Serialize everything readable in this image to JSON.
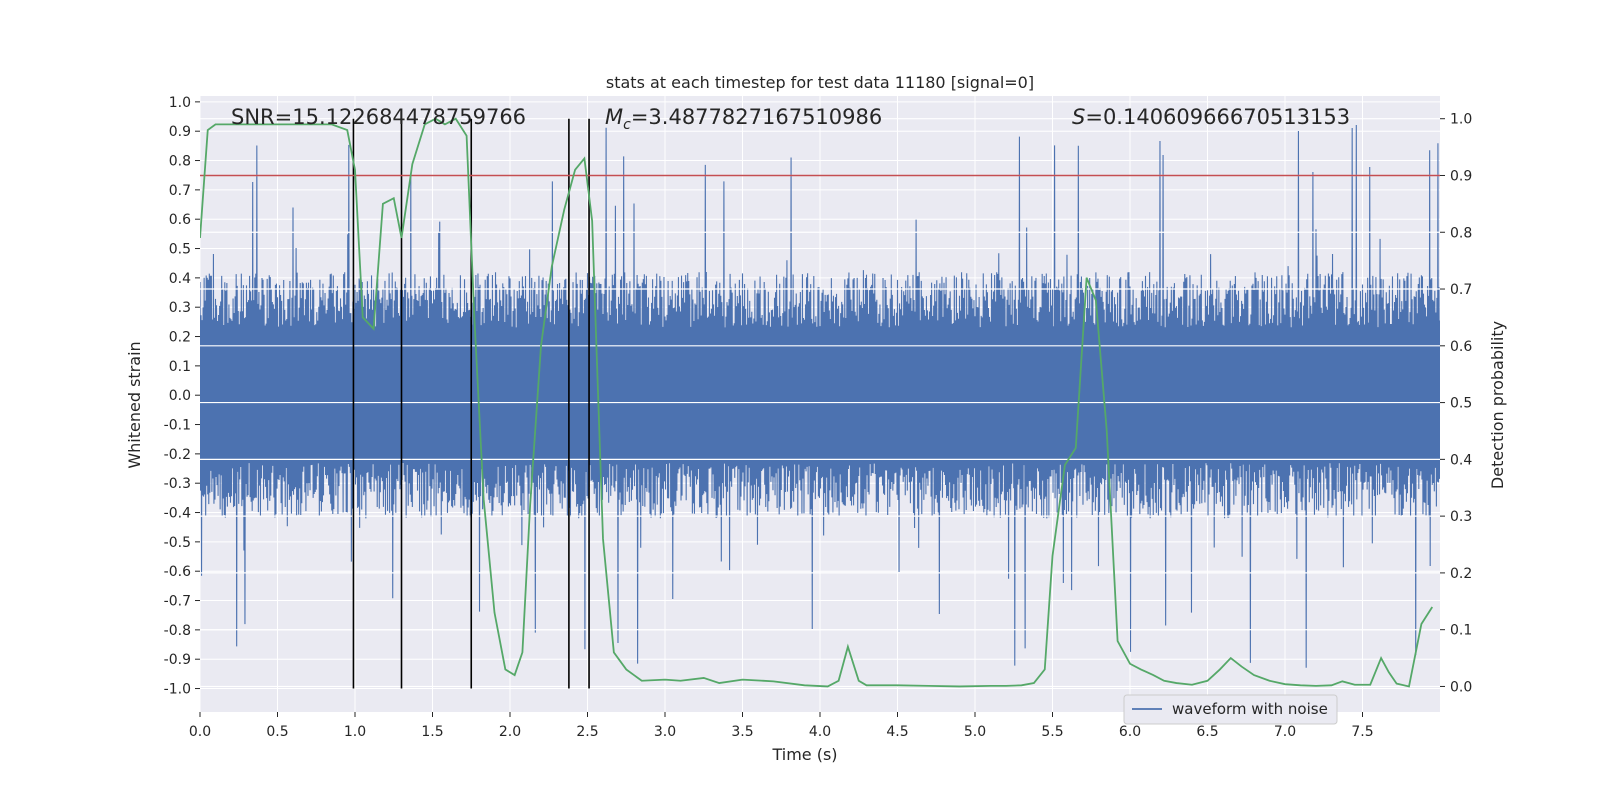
{
  "chart_data": {
    "type": "line",
    "title": "stats at each timestep for test data 11180 [signal=0]",
    "xlabel": "Time (s)",
    "ylabel_left": "Whitened strain",
    "ylabel_right": "Detection probability",
    "xlim": [
      0,
      8
    ],
    "ylim_left": [
      -1.08,
      1.02
    ],
    "ylim_right": [
      -0.045,
      1.04
    ],
    "x_ticks": [
      "0.0",
      "0.5",
      "1.0",
      "1.5",
      "2.0",
      "2.5",
      "3.0",
      "3.5",
      "4.0",
      "4.5",
      "5.0",
      "5.5",
      "6.0",
      "6.5",
      "7.0",
      "7.5"
    ],
    "y_ticks_left": [
      "-1.0",
      "-0.9",
      "-0.8",
      "-0.7",
      "-0.6",
      "-0.5",
      "-0.4",
      "-0.3",
      "-0.2",
      "-0.1",
      "0.0",
      "0.1",
      "0.2",
      "0.3",
      "0.4",
      "0.5",
      "0.6",
      "0.7",
      "0.8",
      "0.9",
      "1.0"
    ],
    "y_ticks_right": [
      "0.0",
      "0.1",
      "0.2",
      "0.3",
      "0.4",
      "0.5",
      "0.6",
      "0.7",
      "0.8",
      "0.9",
      "1.0"
    ],
    "annotations": {
      "snr": "SNR=15.122684478759766",
      "mc_symbol": "M",
      "mc_sub": "c",
      "mc_value": "=3.4877827167510986",
      "s_symbol": "S",
      "s_value": "=0.14060966670513153"
    },
    "threshold": 0.9,
    "vlines": [
      0.99,
      1.3,
      1.75,
      2.38,
      2.51
    ],
    "waveform": {
      "name": "waveform with noise",
      "color": "#4c72b0",
      "typical_amplitude": 0.42,
      "peak_amplitude": 0.93
    },
    "probability": {
      "name": "detection probability",
      "color": "#55a868",
      "x": [
        0,
        0.05,
        0.1,
        0.2,
        0.35,
        0.5,
        0.7,
        0.85,
        0.95,
        1.0,
        1.05,
        1.12,
        1.18,
        1.25,
        1.3,
        1.37,
        1.45,
        1.52,
        1.58,
        1.65,
        1.72,
        1.77,
        1.83,
        1.9,
        1.97,
        2.03,
        2.08,
        2.13,
        2.2,
        2.27,
        2.35,
        2.42,
        2.48,
        2.53,
        2.6,
        2.67,
        2.75,
        2.85,
        3.0,
        3.1,
        3.25,
        3.35,
        3.5,
        3.7,
        3.9,
        4.05,
        4.12,
        4.18,
        4.25,
        4.3,
        4.5,
        4.7,
        4.9,
        5.1,
        5.2,
        5.3,
        5.38,
        5.45,
        5.5,
        5.58,
        5.65,
        5.72,
        5.78,
        5.85,
        5.92,
        6.0,
        6.07,
        6.15,
        6.22,
        6.3,
        6.4,
        6.5,
        6.58,
        6.65,
        6.72,
        6.8,
        6.9,
        7.0,
        7.1,
        7.2,
        7.3,
        7.37,
        7.45,
        7.55,
        7.62,
        7.67,
        7.72,
        7.8,
        7.88,
        7.95
      ],
      "values": [
        0.79,
        0.98,
        0.99,
        0.99,
        0.99,
        0.99,
        0.99,
        0.99,
        0.98,
        0.91,
        0.65,
        0.63,
        0.85,
        0.86,
        0.79,
        0.92,
        0.99,
        1.0,
        0.99,
        1.0,
        0.97,
        0.65,
        0.33,
        0.13,
        0.03,
        0.02,
        0.06,
        0.32,
        0.6,
        0.74,
        0.84,
        0.91,
        0.93,
        0.82,
        0.26,
        0.06,
        0.03,
        0.01,
        0.012,
        0.01,
        0.015,
        0.006,
        0.012,
        0.009,
        0.002,
        0.0,
        0.01,
        0.07,
        0.01,
        0.002,
        0.002,
        0.001,
        0.0,
        0.001,
        0.001,
        0.002,
        0.006,
        0.03,
        0.23,
        0.39,
        0.42,
        0.72,
        0.68,
        0.45,
        0.08,
        0.04,
        0.03,
        0.02,
        0.01,
        0.006,
        0.003,
        0.01,
        0.03,
        0.05,
        0.035,
        0.02,
        0.01,
        0.004,
        0.002,
        0.001,
        0.002,
        0.009,
        0.003,
        0.003,
        0.05,
        0.025,
        0.005,
        0.0,
        0.11,
        0.14
      ]
    }
  }
}
